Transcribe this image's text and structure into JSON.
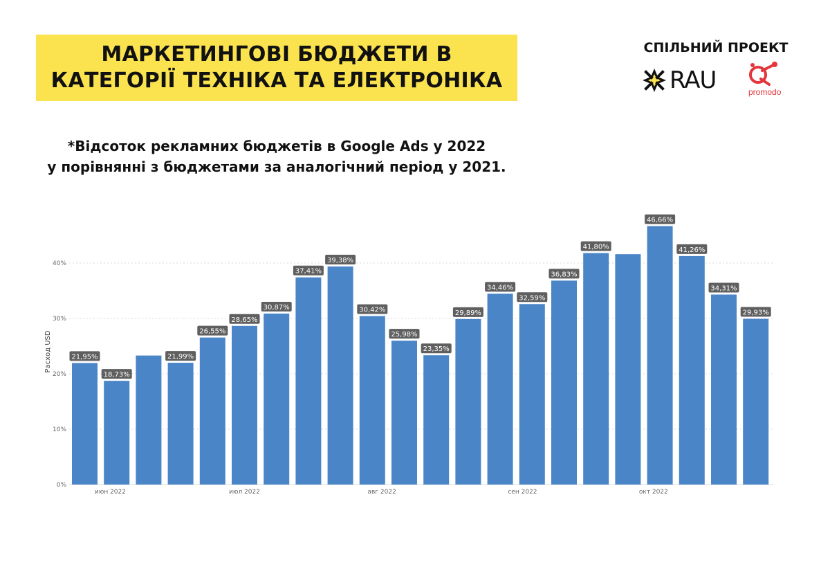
{
  "header": {
    "title_line1": "МАРКЕТИНГОВІ БЮДЖЕТИ В",
    "title_line2": "КАТЕГОРІЇ ТЕХНІКА ТА ЕЛЕКТРОНІКА",
    "partner_label": "СПІЛЬНИЙ ПРОЕКТ",
    "logo_rau": "RAU",
    "logo_promodo": "promodo"
  },
  "subtitle": {
    "line1": "*Відсоток рекламних бюджетів в Google Ads у 2022",
    "line2": "у порівнянні з бюджетами за аналогічний період у 2021."
  },
  "colors": {
    "title_bg": "#FBE34F",
    "bar": "#4A85C8",
    "label_bg": "#5F5F5F",
    "promodo": "#E4343C"
  },
  "chart_data": {
    "type": "bar",
    "ylabel": "Расход USD",
    "ylim": [
      0,
      0.5
    ],
    "yticks": [
      0,
      0.1,
      0.2,
      0.3,
      0.4
    ],
    "ytick_labels": [
      "0%",
      "10%",
      "20%",
      "30%",
      "40%"
    ],
    "grid": true,
    "values": [
      21.95,
      18.73,
      23.3,
      21.99,
      26.55,
      28.65,
      30.87,
      37.41,
      39.38,
      30.42,
      25.98,
      23.35,
      29.89,
      34.46,
      32.59,
      36.83,
      41.8,
      41.6,
      46.66,
      41.26,
      34.31,
      29.93
    ],
    "data_labels": [
      "21,95%",
      "18,73%",
      "",
      "21,99%",
      "26,55%",
      "28,65%",
      "30,87%",
      "37,41%",
      "39,38%",
      "30,42%",
      "25,98%",
      "23,35%",
      "29,89%",
      "34,46%",
      "32,59%",
      "36,83%",
      "41,80%",
      "",
      "46,66%",
      "41,26%",
      "34,31%",
      "29,93%"
    ],
    "x_tick_labels": [
      {
        "label": "июн 2022",
        "index": 0.8
      },
      {
        "label": "июл 2022",
        "index": 5.0
      },
      {
        "label": "авг 2022",
        "index": 9.3
      },
      {
        "label": "сен 2022",
        "index": 13.7
      },
      {
        "label": "окт 2022",
        "index": 17.8
      }
    ]
  }
}
